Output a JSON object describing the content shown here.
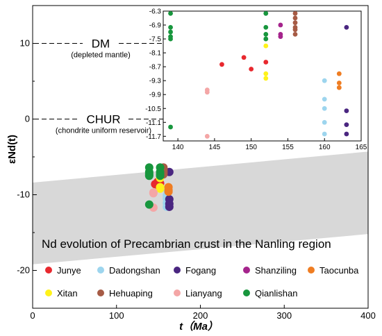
{
  "chart_data": {
    "type": "scatter",
    "xlabel": "t（Ma）",
    "ylabel": "εNd(t)",
    "xlim": [
      0,
      400
    ],
    "ylim": [
      -25,
      15
    ],
    "xticks": [
      0,
      100,
      200,
      300,
      400
    ],
    "yticks": [
      10,
      0,
      -10,
      -20
    ],
    "reference_lines": [
      {
        "id": "dm",
        "label": "DM",
        "sublabel": "(depleted mantle)",
        "y": 10
      },
      {
        "id": "chur",
        "label": "CHUR",
        "sublabel": "(chondrite uniform reservoir)",
        "y": 0
      }
    ],
    "band": {
      "label": "Nd evolution of Precambrian crust in the Nanling region",
      "upper": [
        [
          0,
          -8.4
        ],
        [
          400,
          -4.3
        ]
      ],
      "lower": [
        [
          0,
          -19.2
        ],
        [
          400,
          -15.2
        ]
      ]
    },
    "series": [
      {
        "name": "Junye",
        "color": "#e8282e",
        "points": [
          [
            146,
            -8.6
          ],
          [
            150,
            -8.8
          ],
          [
            152,
            -8.5
          ],
          [
            149,
            -8.3
          ]
        ]
      },
      {
        "name": "Dadongshan",
        "color": "#9dd5ee",
        "points": [
          [
            160,
            -9.3
          ],
          [
            160,
            -10.1
          ],
          [
            160,
            -10.5
          ],
          [
            160,
            -11.1
          ],
          [
            160,
            -11.6
          ]
        ]
      },
      {
        "name": "Fogang",
        "color": "#4a2680",
        "points": [
          [
            163,
            -7.0
          ],
          [
            163,
            -10.6
          ],
          [
            163,
            -11.2
          ],
          [
            163,
            -11.6
          ]
        ]
      },
      {
        "name": "Shanziling",
        "color": "#a5248c",
        "points": [
          [
            154,
            -6.9
          ],
          [
            154,
            -7.3
          ],
          [
            154,
            -7.4
          ]
        ]
      },
      {
        "name": "Taocunba",
        "color": "#ef7d22",
        "points": [
          [
            162,
            -9.0
          ],
          [
            162,
            -9.4
          ],
          [
            162,
            -9.6
          ]
        ]
      },
      {
        "name": "Xitan",
        "color": "#fff21a",
        "points": [
          [
            152,
            -7.8
          ],
          [
            152,
            -9.0
          ],
          [
            152,
            -9.2
          ]
        ]
      },
      {
        "name": "Hehuaping",
        "color": "#a65b45",
        "points": [
          [
            156,
            -6.4
          ],
          [
            156,
            -6.6
          ],
          [
            156,
            -6.8
          ],
          [
            156,
            -7.0
          ],
          [
            156,
            -7.1
          ],
          [
            156,
            -7.3
          ]
        ]
      },
      {
        "name": "Lianyang",
        "color": "#f4a6a6",
        "points": [
          [
            144,
            -9.8
          ],
          [
            144,
            -9.7
          ],
          [
            144,
            -11.7
          ]
        ]
      },
      {
        "name": "Qianlishan",
        "color": "#17963d",
        "points": [
          [
            139,
            -6.4
          ],
          [
            139,
            -7.0
          ],
          [
            139,
            -7.2
          ],
          [
            139,
            -7.4
          ],
          [
            139,
            -7.5
          ],
          [
            152,
            -6.4
          ],
          [
            152,
            -7.0
          ],
          [
            152,
            -7.3
          ],
          [
            152,
            -7.5
          ],
          [
            139,
            -11.3
          ]
        ]
      }
    ],
    "inset": {
      "xlim": [
        138,
        165
      ],
      "ylim": [
        -11.9,
        -6.3
      ],
      "xticks": [
        140,
        145,
        150,
        155,
        160,
        165
      ],
      "yticks": [
        "-6.3",
        "-6.9",
        "-7.5",
        "-8.1",
        "-8.7",
        "-9.3",
        "-9.9",
        "-10.5",
        "-11.1",
        "-11.7"
      ]
    },
    "legend": {
      "rows": [
        [
          "Junye",
          "Dadongshan",
          "Fogang",
          "Shanziling",
          "Taocunba"
        ],
        [
          "Xitan",
          "Hehuaping",
          "Lianyang",
          "Qianlishan"
        ]
      ]
    }
  }
}
